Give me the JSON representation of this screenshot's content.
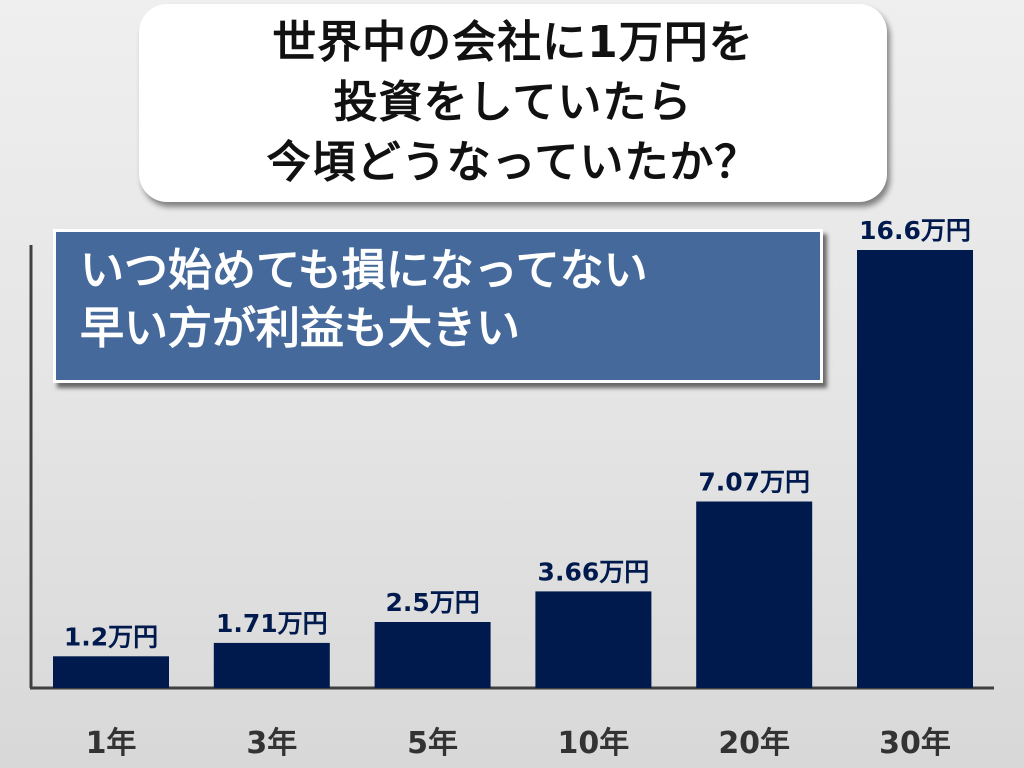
{
  "title": {
    "lines": [
      "世界中の会社に1万円を",
      "投資をしていたら",
      "今頃どうなっていたか？"
    ]
  },
  "note": {
    "lines": [
      "いつ始めても損になってない",
      "早い方が利益も大きい"
    ]
  },
  "chart_data": {
    "type": "bar",
    "categories": [
      "1年",
      "3年",
      "5年",
      "10年",
      "20年",
      "30年"
    ],
    "values": [
      1.2,
      1.71,
      2.5,
      3.66,
      7.07,
      16.6
    ],
    "value_labels": [
      "1.2万円",
      "1.71万円",
      "2.5万円",
      "3.66万円",
      "7.07万円",
      "16.6万円"
    ],
    "unit": "万円",
    "ylim": [
      0,
      18
    ],
    "grid": false,
    "legend": "none",
    "bar_color": "#001a4d",
    "label_color": "#001a4d",
    "axis_color": "#404040"
  }
}
